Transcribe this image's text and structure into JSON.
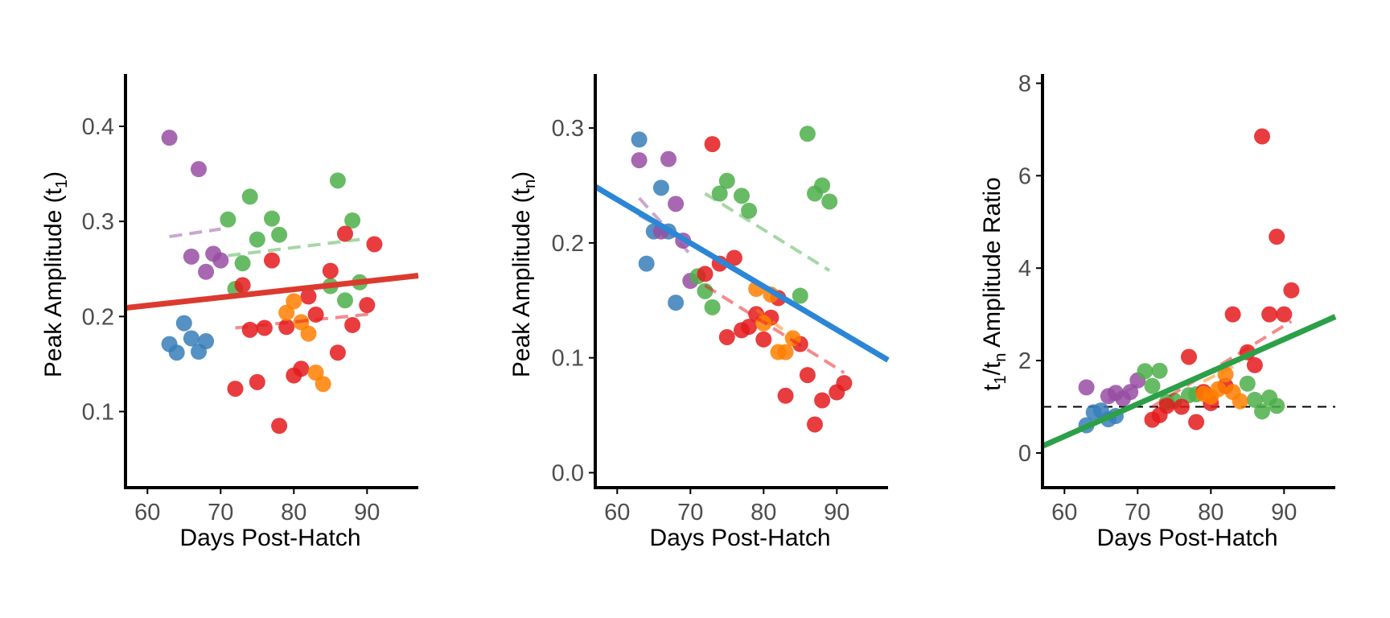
{
  "colors": {
    "blue": "#377EB8",
    "purple": "#984EA3",
    "green": "#4DAF4A",
    "red": "#E41A1C",
    "orange": "#FF7F00",
    "axis": "#000000",
    "reference_line": "#000000"
  },
  "chart_data": [
    {
      "type": "scatter",
      "xlabel": "Days Post-Hatch",
      "ylabel_main": "Peak Amplitude (t",
      "ylabel_sub": "1",
      "ylabel_end": ")",
      "xlim": [
        57,
        97
      ],
      "ylim": [
        0.02,
        0.455
      ],
      "xticks": [
        60,
        70,
        80,
        90
      ],
      "yticks": [
        0.1,
        0.2,
        0.3,
        0.4
      ],
      "ytick_labels": [
        "0.1",
        "0.2",
        "0.3",
        "0.4"
      ],
      "overall_fit": {
        "color": "#DC3A2F",
        "x": [
          57,
          97
        ],
        "y": [
          0.209,
          0.243
        ]
      },
      "series": [
        {
          "color": "#377EB8",
          "x": [
            63,
            64,
            65,
            66,
            67,
            68
          ],
          "y": [
            0.171,
            0.162,
            0.193,
            0.177,
            0.163,
            0.174
          ],
          "fit": null
        },
        {
          "color": "#984EA3",
          "x": [
            63,
            66,
            67,
            68,
            69,
            70
          ],
          "y": [
            0.388,
            0.263,
            0.355,
            0.247,
            0.266,
            0.259
          ],
          "fit": {
            "x": [
              63,
              70
            ],
            "y": [
              0.284,
              0.292
            ]
          }
        },
        {
          "color": "#4DAF4A",
          "x": [
            71,
            72,
            73,
            74,
            75,
            77,
            78,
            85,
            86,
            87,
            88,
            89
          ],
          "y": [
            0.302,
            0.229,
            0.256,
            0.326,
            0.281,
            0.303,
            0.286,
            0.232,
            0.343,
            0.217,
            0.301,
            0.236
          ],
          "fit": {
            "x": [
              71,
              89
            ],
            "y": [
              0.264,
              0.281
            ]
          }
        },
        {
          "color": "#E41A1C",
          "x": [
            72,
            73,
            74,
            75,
            76,
            77,
            78,
            79,
            80,
            81,
            82,
            83,
            85,
            86,
            87,
            88,
            90,
            91
          ],
          "y": [
            0.124,
            0.233,
            0.186,
            0.131,
            0.188,
            0.259,
            0.085,
            0.189,
            0.138,
            0.145,
            0.221,
            0.202,
            0.248,
            0.162,
            0.287,
            0.191,
            0.212,
            0.276
          ],
          "fit": {
            "x": [
              72,
              91
            ],
            "y": [
              0.188,
              0.203
            ]
          }
        },
        {
          "color": "#FF7F00",
          "x": [
            79,
            80,
            81,
            82,
            83,
            84
          ],
          "y": [
            0.204,
            0.216,
            0.194,
            0.182,
            0.141,
            0.129
          ],
          "fit": null
        }
      ]
    },
    {
      "type": "scatter",
      "xlabel": "Days Post-Hatch",
      "ylabel_main": "Peak Amplitude (t",
      "ylabel_sub": "n",
      "ylabel_end": ")",
      "xlim": [
        57,
        97
      ],
      "ylim": [
        -0.013,
        0.347
      ],
      "xticks": [
        60,
        70,
        80,
        90
      ],
      "yticks": [
        0.0,
        0.1,
        0.2,
        0.3
      ],
      "ytick_labels": [
        "0.0",
        "0.1",
        "0.2",
        "0.3"
      ],
      "overall_fit": {
        "color": "#2B86D6",
        "x": [
          57,
          97
        ],
        "y": [
          0.249,
          0.098
        ]
      },
      "series": [
        {
          "color": "#377EB8",
          "x": [
            63,
            64,
            65,
            66,
            67,
            68
          ],
          "y": [
            0.29,
            0.182,
            0.21,
            0.248,
            0.21,
            0.148
          ],
          "fit": {
            "x": [
              63,
              68
            ],
            "y": [
              0.224,
              0.207
            ]
          }
        },
        {
          "color": "#984EA3",
          "x": [
            63,
            66,
            67,
            68,
            69,
            70
          ],
          "y": [
            0.272,
            0.21,
            0.273,
            0.234,
            0.202,
            0.167
          ],
          "fit": {
            "x": [
              63,
              70
            ],
            "y": [
              0.239,
              0.19
            ]
          }
        },
        {
          "color": "#4DAF4A",
          "x": [
            71,
            72,
            73,
            74,
            75,
            77,
            78,
            85,
            86,
            87,
            88,
            89
          ],
          "y": [
            0.171,
            0.158,
            0.144,
            0.243,
            0.254,
            0.241,
            0.228,
            0.154,
            0.295,
            0.243,
            0.25,
            0.236
          ],
          "fit": {
            "x": [
              72,
              89
            ],
            "y": [
              0.243,
              0.176
            ]
          }
        },
        {
          "color": "#E41A1C",
          "x": [
            72,
            73,
            74,
            75,
            76,
            77,
            78,
            79,
            80,
            81,
            82,
            83,
            85,
            86,
            87,
            88,
            90,
            91
          ],
          "y": [
            0.173,
            0.286,
            0.182,
            0.118,
            0.187,
            0.124,
            0.127,
            0.138,
            0.116,
            0.135,
            0.152,
            0.067,
            0.112,
            0.085,
            0.042,
            0.063,
            0.07,
            0.078
          ],
          "fit": {
            "x": [
              72,
              91
            ],
            "y": [
              0.163,
              0.087
            ]
          }
        },
        {
          "color": "#FF7F00",
          "x": [
            79,
            80,
            81,
            82,
            83,
            84
          ],
          "y": [
            0.16,
            0.13,
            0.155,
            0.105,
            0.105,
            0.117
          ],
          "fit": {
            "x": [
              79,
              84
            ],
            "y": [
              0.142,
              0.118
            ]
          }
        }
      ]
    },
    {
      "type": "scatter",
      "xlabel": "Days Post-Hatch",
      "ylabel_pre": "t",
      "ylabel_sub1": "1",
      "ylabel_mid": "/t",
      "ylabel_sub2": "n",
      "ylabel_end": " Amplitude Ratio",
      "xlim": [
        57,
        97
      ],
      "ylim": [
        -0.75,
        8.2
      ],
      "xticks": [
        60,
        70,
        80,
        90
      ],
      "yticks": [
        0,
        2,
        4,
        6,
        8
      ],
      "ytick_labels": [
        "0",
        "2",
        "4",
        "6",
        "8"
      ],
      "reference_y": 1,
      "overall_fit": {
        "color": "#2CA048",
        "x": [
          57,
          97
        ],
        "y": [
          0.15,
          2.95
        ]
      },
      "series": [
        {
          "color": "#377EB8",
          "x": [
            63,
            64,
            65,
            66,
            67
          ],
          "y": [
            0.6,
            0.88,
            0.92,
            0.73,
            0.8
          ],
          "fit": null
        },
        {
          "color": "#984EA3",
          "x": [
            63,
            66,
            67,
            68,
            69,
            70
          ],
          "y": [
            1.42,
            1.23,
            1.3,
            1.18,
            1.32,
            1.57
          ],
          "fit": {
            "x": [
              66,
              70
            ],
            "y": [
              1.13,
              1.47
            ]
          }
        },
        {
          "color": "#4DAF4A",
          "x": [
            71,
            72,
            73,
            74,
            75,
            77,
            78,
            85,
            86,
            87,
            88,
            89
          ],
          "y": [
            1.77,
            1.45,
            1.78,
            1.1,
            1.13,
            1.25,
            1.27,
            1.5,
            1.15,
            0.9,
            1.2,
            1.02
          ],
          "fit": null
        },
        {
          "color": "#E41A1C",
          "x": [
            72,
            73,
            74,
            76,
            77,
            78,
            79,
            80,
            82,
            83,
            85,
            86,
            87,
            88,
            89,
            90,
            91
          ],
          "y": [
            0.72,
            0.82,
            1.02,
            1.0,
            2.08,
            0.67,
            1.32,
            1.08,
            1.45,
            3.0,
            2.18,
            1.9,
            6.85,
            3.0,
            4.68,
            3.0,
            3.52
          ],
          "fit": {
            "x": [
              72,
              91
            ],
            "y": [
              1.0,
              2.85
            ]
          }
        },
        {
          "color": "#FF7F00",
          "x": [
            79,
            80,
            81,
            82,
            83,
            84
          ],
          "y": [
            1.28,
            1.22,
            1.38,
            1.7,
            1.32,
            1.12
          ],
          "fit": {
            "x": [
              79,
              84
            ],
            "y": [
              1.55,
              1.95
            ]
          }
        }
      ]
    }
  ]
}
